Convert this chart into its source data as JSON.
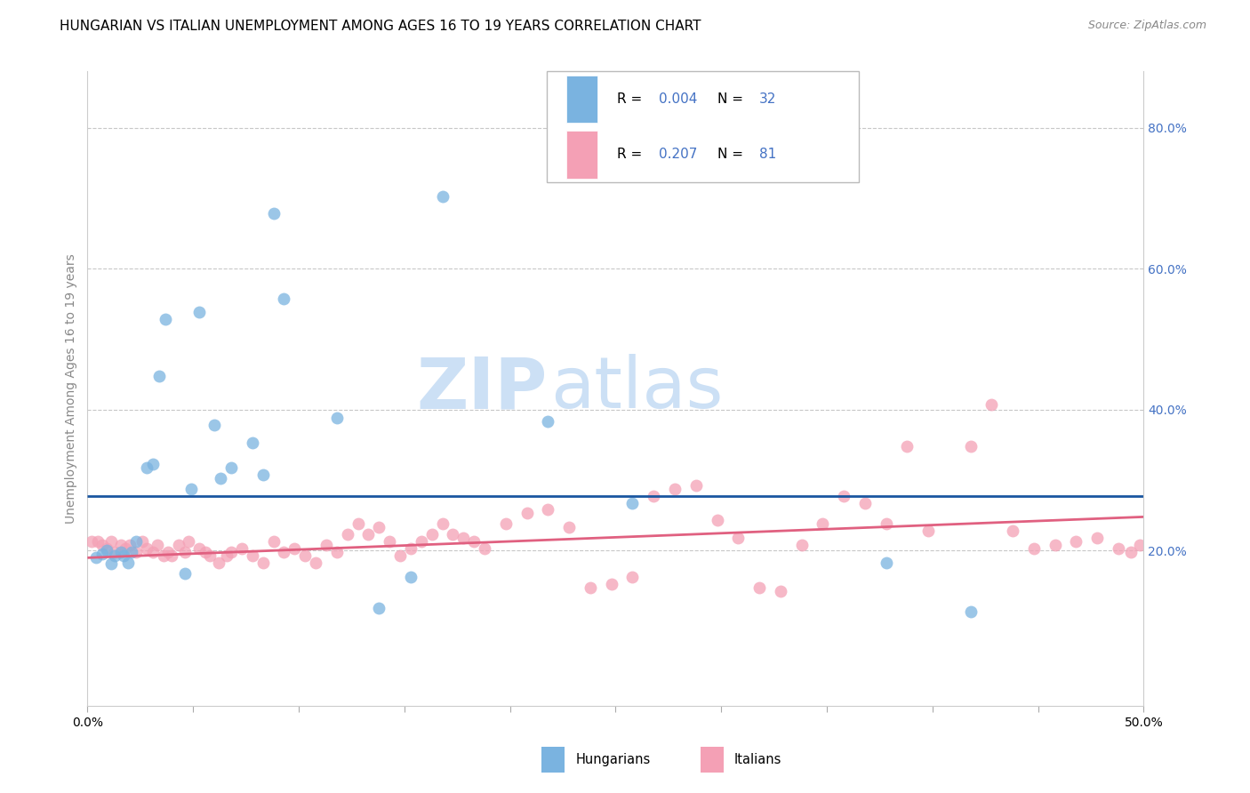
{
  "title": "HUNGARIAN VS ITALIAN UNEMPLOYMENT AMONG AGES 16 TO 19 YEARS CORRELATION CHART",
  "source": "Source: ZipAtlas.com",
  "ylabel": "Unemployment Among Ages 16 to 19 years",
  "xlim": [
    0.0,
    0.5
  ],
  "ylim": [
    -0.02,
    0.88
  ],
  "xtick_vals": [
    0.0,
    0.05,
    0.1,
    0.15,
    0.2,
    0.25,
    0.3,
    0.35,
    0.4,
    0.45,
    0.5
  ],
  "xtick_labels": [
    "0.0%",
    "",
    "",
    "",
    "",
    "",
    "",
    "",
    "",
    "",
    "50.0%"
  ],
  "yticks_right": [
    0.2,
    0.4,
    0.6,
    0.8
  ],
  "ytick_labels_right": [
    "20.0%",
    "40.0%",
    "60.0%",
    "80.0%"
  ],
  "blue_color": "#7ab3e0",
  "pink_color": "#f4a0b5",
  "blue_line_color": "#1a56a0",
  "pink_line_color": "#e06080",
  "legend_color": "#4472c4",
  "title_fontsize": 11,
  "axis_label_fontsize": 10,
  "tick_fontsize": 10,
  "legend_R_blue": "0.004",
  "legend_N_blue": "32",
  "legend_R_pink": "0.207",
  "legend_N_pink": "81",
  "blue_line_y_start": 0.278,
  "blue_line_y_end": 0.278,
  "pink_line_y_start": 0.19,
  "pink_line_y_end": 0.248,
  "hu_x": [
    0.004,
    0.007,
    0.009,
    0.011,
    0.013,
    0.016,
    0.017,
    0.019,
    0.021,
    0.023,
    0.028,
    0.031,
    0.034,
    0.037,
    0.046,
    0.049,
    0.053,
    0.06,
    0.063,
    0.068,
    0.078,
    0.083,
    0.088,
    0.093,
    0.118,
    0.138,
    0.153,
    0.168,
    0.218,
    0.258,
    0.378,
    0.418
  ],
  "hu_y": [
    0.19,
    0.195,
    0.2,
    0.182,
    0.193,
    0.198,
    0.193,
    0.183,
    0.198,
    0.213,
    0.318,
    0.323,
    0.448,
    0.528,
    0.168,
    0.288,
    0.538,
    0.378,
    0.303,
    0.318,
    0.353,
    0.308,
    0.678,
    0.558,
    0.388,
    0.118,
    0.163,
    0.703,
    0.383,
    0.268,
    0.183,
    0.113
  ],
  "it_x": [
    0.002,
    0.005,
    0.007,
    0.009,
    0.011,
    0.013,
    0.016,
    0.018,
    0.02,
    0.023,
    0.026,
    0.028,
    0.031,
    0.033,
    0.036,
    0.038,
    0.04,
    0.043,
    0.046,
    0.048,
    0.053,
    0.056,
    0.058,
    0.062,
    0.066,
    0.068,
    0.073,
    0.078,
    0.083,
    0.088,
    0.093,
    0.098,
    0.103,
    0.108,
    0.113,
    0.118,
    0.123,
    0.128,
    0.133,
    0.138,
    0.143,
    0.148,
    0.153,
    0.158,
    0.163,
    0.168,
    0.173,
    0.178,
    0.183,
    0.188,
    0.198,
    0.208,
    0.218,
    0.228,
    0.238,
    0.248,
    0.258,
    0.268,
    0.278,
    0.288,
    0.298,
    0.308,
    0.318,
    0.328,
    0.338,
    0.348,
    0.358,
    0.368,
    0.378,
    0.388,
    0.398,
    0.418,
    0.428,
    0.438,
    0.448,
    0.458,
    0.468,
    0.478,
    0.488,
    0.494,
    0.498
  ],
  "it_y": [
    0.213,
    0.213,
    0.208,
    0.203,
    0.213,
    0.198,
    0.208,
    0.203,
    0.208,
    0.198,
    0.213,
    0.203,
    0.198,
    0.208,
    0.193,
    0.198,
    0.193,
    0.208,
    0.198,
    0.213,
    0.203,
    0.198,
    0.193,
    0.183,
    0.193,
    0.198,
    0.203,
    0.193,
    0.183,
    0.213,
    0.198,
    0.203,
    0.193,
    0.183,
    0.208,
    0.198,
    0.223,
    0.238,
    0.223,
    0.233,
    0.213,
    0.193,
    0.203,
    0.213,
    0.223,
    0.238,
    0.223,
    0.218,
    0.213,
    0.203,
    0.238,
    0.253,
    0.258,
    0.233,
    0.148,
    0.153,
    0.163,
    0.278,
    0.288,
    0.293,
    0.243,
    0.218,
    0.148,
    0.143,
    0.208,
    0.238,
    0.278,
    0.268,
    0.238,
    0.348,
    0.228,
    0.348,
    0.408,
    0.228,
    0.203,
    0.208,
    0.213,
    0.218,
    0.203,
    0.198,
    0.208
  ],
  "background_color": "#ffffff",
  "grid_color": "#c8c8c8",
  "watermark_zip_color": "#cce0f5",
  "watermark_atlas_color": "#cce0f5",
  "scatter_size": 100,
  "scatter_alpha": 0.75
}
